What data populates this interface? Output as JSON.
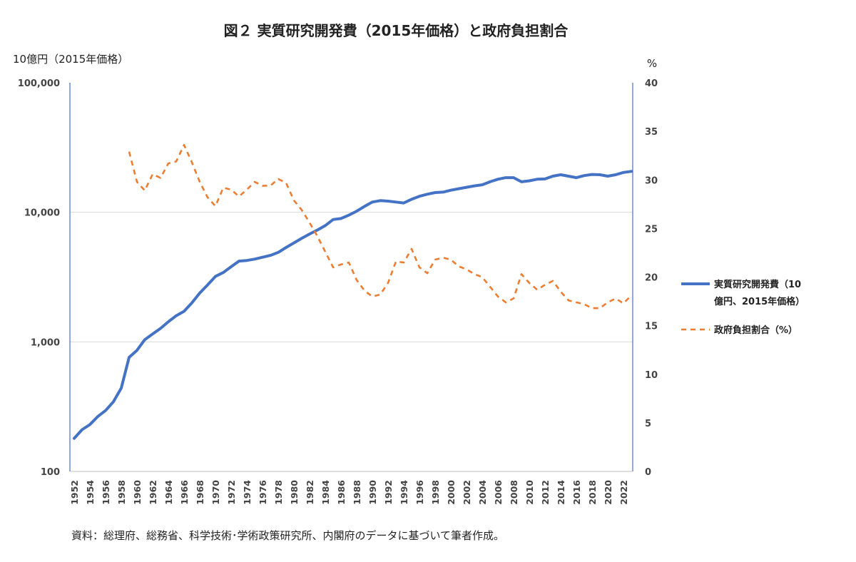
{
  "chart_data": {
    "type": "line",
    "title": "図２ 実質研究開発費（2015年価格）と政府負担割合",
    "left_axis": {
      "unit_label": "10億円（2015年価格）",
      "scale": "log",
      "ylim": [
        100,
        100000
      ],
      "tick_values": [
        100,
        1000,
        10000,
        100000
      ],
      "tick_labels": [
        "100",
        "1,000",
        "10,000",
        "100,000"
      ]
    },
    "right_axis": {
      "unit_label": "%",
      "scale": "linear",
      "ylim": [
        0,
        40
      ],
      "tick_values": [
        0,
        5,
        10,
        15,
        20,
        25,
        30,
        35,
        40
      ],
      "tick_labels": [
        "0",
        "5",
        "10",
        "15",
        "20",
        "25",
        "30",
        "35",
        "40"
      ]
    },
    "x_axis": {
      "range": [
        1952,
        2023
      ],
      "tick_labels": [
        "1952",
        "1954",
        "1956",
        "1958",
        "1960",
        "1962",
        "1964",
        "1966",
        "1968",
        "1970",
        "1972",
        "1974",
        "1976",
        "1978",
        "1980",
        "1982",
        "1984",
        "1986",
        "1988",
        "1990",
        "1992",
        "1994",
        "1996",
        "1998",
        "2000",
        "2002",
        "2004",
        "2006",
        "2008",
        "2010",
        "2012",
        "2014",
        "2016",
        "2018",
        "2020",
        "2022"
      ]
    },
    "grid": "horizontal",
    "legend_position": "right",
    "series": [
      {
        "name": "実質研究開発費（10億円、2015年価格）",
        "axis": "left",
        "color": "#4472C4",
        "style": "solid",
        "x": [
          1952,
          1953,
          1954,
          1955,
          1956,
          1957,
          1958,
          1959,
          1960,
          1961,
          1962,
          1963,
          1964,
          1965,
          1966,
          1967,
          1968,
          1969,
          1970,
          1971,
          1972,
          1973,
          1974,
          1975,
          1976,
          1977,
          1978,
          1979,
          1980,
          1981,
          1982,
          1983,
          1984,
          1985,
          1986,
          1987,
          1988,
          1989,
          1990,
          1991,
          1992,
          1993,
          1994,
          1995,
          1996,
          1997,
          1998,
          1999,
          2000,
          2001,
          2002,
          2003,
          2004,
          2005,
          2006,
          2007,
          2008,
          2009,
          2010,
          2011,
          2012,
          2013,
          2014,
          2015,
          2016,
          2017,
          2018,
          2019,
          2020,
          2021,
          2022,
          2023
        ],
        "values": [
          180,
          210,
          230,
          265,
          295,
          345,
          440,
          760,
          860,
          1040,
          1150,
          1270,
          1430,
          1590,
          1720,
          2000,
          2380,
          2750,
          3200,
          3430,
          3800,
          4200,
          4250,
          4350,
          4500,
          4650,
          4900,
          5350,
          5800,
          6300,
          6800,
          7300,
          7900,
          8800,
          8950,
          9500,
          10200,
          11100,
          12000,
          12300,
          12200,
          12000,
          11800,
          12600,
          13300,
          13800,
          14200,
          14300,
          14800,
          15200,
          15600,
          16000,
          16300,
          17200,
          18000,
          18500,
          18500,
          17200,
          17500,
          18000,
          18100,
          19000,
          19500,
          19000,
          18500,
          19200,
          19600,
          19500,
          19000,
          19500,
          20300,
          20700
        ]
      },
      {
        "name": "政府負担割合（%）",
        "axis": "right",
        "color": "#ED7D31",
        "style": "dashed",
        "x": [
          1959,
          1960,
          1961,
          1962,
          1963,
          1964,
          1965,
          1966,
          1967,
          1968,
          1969,
          1970,
          1971,
          1972,
          1973,
          1974,
          1975,
          1976,
          1977,
          1978,
          1979,
          1980,
          1981,
          1982,
          1983,
          1984,
          1985,
          1986,
          1987,
          1988,
          1989,
          1990,
          1991,
          1992,
          1993,
          1994,
          1995,
          1996,
          1997,
          1998,
          1999,
          2000,
          2001,
          2002,
          2003,
          2004,
          2005,
          2006,
          2007,
          2008,
          2009,
          2010,
          2011,
          2012,
          2013,
          2014,
          2015,
          2016,
          2017,
          2018,
          2019,
          2020,
          2021,
          2022,
          2023
        ],
        "values": [
          32.9,
          29.8,
          28.9,
          30.6,
          30.2,
          31.7,
          31.9,
          33.6,
          31.8,
          29.8,
          28.2,
          27.3,
          29.2,
          29.0,
          28.3,
          29.0,
          29.8,
          29.4,
          29.4,
          30.1,
          29.7,
          27.9,
          26.9,
          25.6,
          24.2,
          22.6,
          21.0,
          21.3,
          21.5,
          19.7,
          18.6,
          18.0,
          18.2,
          19.4,
          21.6,
          21.5,
          22.9,
          21.0,
          20.4,
          21.8,
          22.0,
          21.8,
          21.1,
          20.8,
          20.3,
          20.0,
          19.0,
          18.0,
          17.4,
          17.8,
          20.3,
          19.4,
          18.7,
          19.2,
          19.6,
          18.5,
          17.6,
          17.4,
          17.2,
          16.8,
          16.8,
          17.4,
          17.8,
          17.3,
          18.1
        ]
      }
    ]
  },
  "legend": {
    "items": [
      {
        "label_lines": [
          "実質研究開発費（10",
          "億円、2015年価格）"
        ]
      },
      {
        "label_lines": [
          "政府負担割合（%）"
        ]
      }
    ]
  },
  "source_note": "資料：総理府、総務省、科学技術･学術政策研究所、内閣府のデータに基づいて筆者作成。"
}
